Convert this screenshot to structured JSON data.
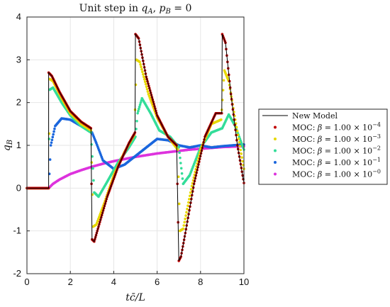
{
  "chart_data": {
    "type": "line",
    "title": "Unit step in q_A, p_B = 0",
    "xlabel": "t c̄ / L",
    "ylabel": "q_B",
    "xlim": [
      0,
      10
    ],
    "ylim": [
      -2,
      4
    ],
    "xticks": [
      0,
      2,
      4,
      6,
      8,
      10
    ],
    "yticks": [
      -2,
      -1,
      0,
      1,
      2,
      3,
      4
    ],
    "grid": true,
    "legend_position": "right-outside",
    "series": [
      {
        "name": "New Model",
        "style": "line",
        "color": "#000000",
        "points": [
          [
            0,
            0
          ],
          [
            1,
            0
          ],
          [
            1,
            2.7
          ],
          [
            1.15,
            2.62
          ],
          [
            1.5,
            2.25
          ],
          [
            2,
            1.8
          ],
          [
            2.5,
            1.55
          ],
          [
            2.95,
            1.4
          ],
          [
            3,
            -1.2
          ],
          [
            3.1,
            -1.25
          ],
          [
            3.3,
            -0.9
          ],
          [
            3.7,
            -0.2
          ],
          [
            4.2,
            0.5
          ],
          [
            4.7,
            1.05
          ],
          [
            4.98,
            1.3
          ],
          [
            5,
            3.6
          ],
          [
            5.15,
            3.5
          ],
          [
            5.5,
            2.6
          ],
          [
            6,
            1.7
          ],
          [
            6.5,
            1.2
          ],
          [
            6.9,
            1.0
          ],
          [
            7,
            -1.7
          ],
          [
            7.1,
            -1.6
          ],
          [
            7.3,
            -1.05
          ],
          [
            7.7,
            0.1
          ],
          [
            8.2,
            1.2
          ],
          [
            8.7,
            1.75
          ],
          [
            8.98,
            1.75
          ],
          [
            9,
            3.6
          ],
          [
            9.15,
            3.4
          ],
          [
            9.4,
            2.2
          ],
          [
            9.7,
            1.0
          ],
          [
            10,
            0.12
          ]
        ]
      },
      {
        "name": "MOC: β = 1.00 × 10^-4",
        "style": "markers",
        "color": "#c00000",
        "points": [
          [
            0,
            0
          ],
          [
            1,
            0
          ],
          [
            1,
            2.7
          ],
          [
            1.15,
            2.62
          ],
          [
            1.5,
            2.25
          ],
          [
            2,
            1.8
          ],
          [
            2.5,
            1.55
          ],
          [
            2.95,
            1.4
          ],
          [
            3,
            -1.2
          ],
          [
            3.1,
            -1.25
          ],
          [
            3.3,
            -0.9
          ],
          [
            3.7,
            -0.2
          ],
          [
            4.2,
            0.5
          ],
          [
            4.7,
            1.05
          ],
          [
            4.98,
            1.3
          ],
          [
            5,
            3.6
          ],
          [
            5.15,
            3.5
          ],
          [
            5.5,
            2.6
          ],
          [
            6,
            1.7
          ],
          [
            6.5,
            1.2
          ],
          [
            6.9,
            1.0
          ],
          [
            7,
            -1.7
          ],
          [
            7.1,
            -1.6
          ],
          [
            7.3,
            -1.05
          ],
          [
            7.7,
            0.1
          ],
          [
            8.2,
            1.2
          ],
          [
            8.7,
            1.75
          ],
          [
            8.98,
            1.75
          ],
          [
            9,
            3.6
          ],
          [
            9.15,
            3.4
          ],
          [
            9.4,
            2.2
          ],
          [
            9.7,
            1.0
          ],
          [
            10,
            0.12
          ]
        ]
      },
      {
        "name": "MOC: β = 1.00 × 10^-3",
        "style": "markers",
        "color": "#e6d800",
        "points": [
          [
            0,
            0
          ],
          [
            1,
            0
          ],
          [
            1.05,
            2.55
          ],
          [
            1.2,
            2.5
          ],
          [
            1.6,
            2.1
          ],
          [
            2,
            1.75
          ],
          [
            2.5,
            1.5
          ],
          [
            2.95,
            1.35
          ],
          [
            3.05,
            -0.9
          ],
          [
            3.2,
            -0.85
          ],
          [
            3.6,
            -0.3
          ],
          [
            4,
            0.3
          ],
          [
            4.5,
            0.85
          ],
          [
            4.95,
            1.25
          ],
          [
            5.05,
            3.0
          ],
          [
            5.2,
            2.95
          ],
          [
            5.6,
            2.2
          ],
          [
            6,
            1.65
          ],
          [
            6.5,
            1.2
          ],
          [
            6.95,
            0.9
          ],
          [
            7.05,
            -1.0
          ],
          [
            7.2,
            -0.95
          ],
          [
            7.6,
            0.05
          ],
          [
            8,
            0.9
          ],
          [
            8.5,
            1.5
          ],
          [
            8.95,
            1.6
          ],
          [
            9.1,
            2.75
          ],
          [
            9.3,
            2.5
          ],
          [
            9.6,
            1.6
          ],
          [
            10,
            0.45
          ]
        ]
      },
      {
        "name": "MOC: β = 1.00 × 10^-2",
        "style": "markers",
        "color": "#33dd99",
        "points": [
          [
            0,
            0
          ],
          [
            1,
            0
          ],
          [
            1.05,
            2.3
          ],
          [
            1.2,
            2.35
          ],
          [
            1.6,
            2.0
          ],
          [
            2,
            1.7
          ],
          [
            2.5,
            1.45
          ],
          [
            2.95,
            1.3
          ],
          [
            3.1,
            -0.1
          ],
          [
            3.3,
            -0.2
          ],
          [
            3.7,
            0.15
          ],
          [
            4.2,
            0.6
          ],
          [
            4.7,
            0.95
          ],
          [
            5,
            1.2
          ],
          [
            5.1,
            1.75
          ],
          [
            5.3,
            2.1
          ],
          [
            5.7,
            1.75
          ],
          [
            6.1,
            1.35
          ],
          [
            6.6,
            1.2
          ],
          [
            7,
            0.95
          ],
          [
            7.2,
            0.1
          ],
          [
            7.5,
            0.3
          ],
          [
            8,
            0.95
          ],
          [
            8.5,
            1.3
          ],
          [
            9,
            1.4
          ],
          [
            9.3,
            1.72
          ],
          [
            9.6,
            1.45
          ],
          [
            10,
            0.9
          ]
        ]
      },
      {
        "name": "MOC: β = 1.00 × 10^-1",
        "style": "markers",
        "color": "#1a66dd",
        "points": [
          [
            0,
            0
          ],
          [
            1,
            0
          ],
          [
            1.1,
            1.0
          ],
          [
            1.3,
            1.45
          ],
          [
            1.6,
            1.63
          ],
          [
            2,
            1.6
          ],
          [
            2.5,
            1.45
          ],
          [
            3,
            1.3
          ],
          [
            3.2,
            1.05
          ],
          [
            3.5,
            0.65
          ],
          [
            4,
            0.45
          ],
          [
            4.5,
            0.55
          ],
          [
            5,
            0.75
          ],
          [
            5.5,
            0.95
          ],
          [
            6,
            1.15
          ],
          [
            6.5,
            1.12
          ],
          [
            7,
            1.0
          ],
          [
            7.5,
            0.95
          ],
          [
            8,
            1.0
          ],
          [
            8.5,
            0.95
          ],
          [
            9,
            0.98
          ],
          [
            9.5,
            1.0
          ],
          [
            10,
            1.02
          ]
        ]
      },
      {
        "name": "MOC: β = 1.00 × 10^-0",
        "style": "markers",
        "color": "#dd33dd",
        "points": [
          [
            0,
            0
          ],
          [
            1,
            0
          ],
          [
            1.2,
            0.1
          ],
          [
            1.5,
            0.2
          ],
          [
            2,
            0.33
          ],
          [
            2.5,
            0.42
          ],
          [
            3,
            0.5
          ],
          [
            3.5,
            0.57
          ],
          [
            4,
            0.63
          ],
          [
            4.5,
            0.68
          ],
          [
            5,
            0.73
          ],
          [
            5.5,
            0.77
          ],
          [
            6,
            0.81
          ],
          [
            6.5,
            0.84
          ],
          [
            7,
            0.87
          ],
          [
            7.5,
            0.9
          ],
          [
            8,
            0.92
          ],
          [
            8.5,
            0.94
          ],
          [
            9,
            0.96
          ],
          [
            9.5,
            0.97
          ],
          [
            10,
            0.98
          ]
        ]
      }
    ]
  }
}
